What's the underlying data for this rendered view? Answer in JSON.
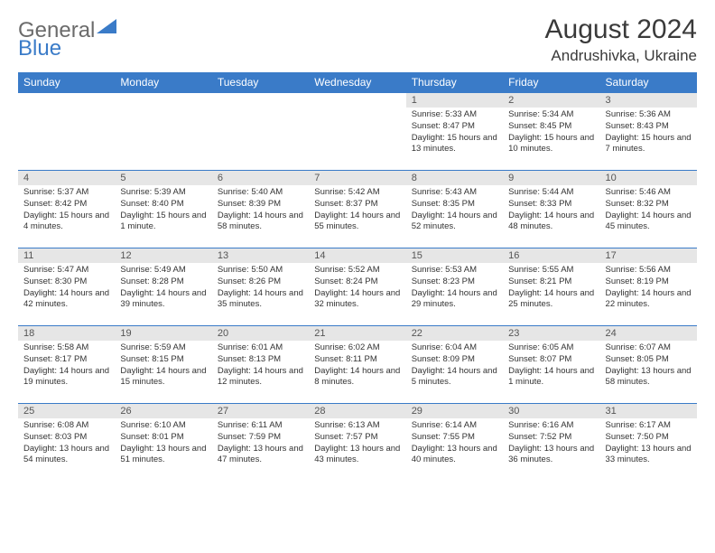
{
  "brand": {
    "text1": "General",
    "text2": "Blue",
    "color1": "#6b6b6b",
    "color2": "#3a7bc8"
  },
  "title": "August 2024",
  "location": "Andrushivka, Ukraine",
  "colors": {
    "header_bg": "#3a7bc8",
    "header_text": "#ffffff",
    "daynum_bg": "#e6e6e6",
    "border": "#3a7bc8",
    "text": "#333333"
  },
  "day_headers": [
    "Sunday",
    "Monday",
    "Tuesday",
    "Wednesday",
    "Thursday",
    "Friday",
    "Saturday"
  ],
  "weeks": [
    [
      {
        "n": "",
        "sr": "",
        "ss": "",
        "dl": ""
      },
      {
        "n": "",
        "sr": "",
        "ss": "",
        "dl": ""
      },
      {
        "n": "",
        "sr": "",
        "ss": "",
        "dl": ""
      },
      {
        "n": "",
        "sr": "",
        "ss": "",
        "dl": ""
      },
      {
        "n": "1",
        "sr": "Sunrise: 5:33 AM",
        "ss": "Sunset: 8:47 PM",
        "dl": "Daylight: 15 hours and 13 minutes."
      },
      {
        "n": "2",
        "sr": "Sunrise: 5:34 AM",
        "ss": "Sunset: 8:45 PM",
        "dl": "Daylight: 15 hours and 10 minutes."
      },
      {
        "n": "3",
        "sr": "Sunrise: 5:36 AM",
        "ss": "Sunset: 8:43 PM",
        "dl": "Daylight: 15 hours and 7 minutes."
      }
    ],
    [
      {
        "n": "4",
        "sr": "Sunrise: 5:37 AM",
        "ss": "Sunset: 8:42 PM",
        "dl": "Daylight: 15 hours and 4 minutes."
      },
      {
        "n": "5",
        "sr": "Sunrise: 5:39 AM",
        "ss": "Sunset: 8:40 PM",
        "dl": "Daylight: 15 hours and 1 minute."
      },
      {
        "n": "6",
        "sr": "Sunrise: 5:40 AM",
        "ss": "Sunset: 8:39 PM",
        "dl": "Daylight: 14 hours and 58 minutes."
      },
      {
        "n": "7",
        "sr": "Sunrise: 5:42 AM",
        "ss": "Sunset: 8:37 PM",
        "dl": "Daylight: 14 hours and 55 minutes."
      },
      {
        "n": "8",
        "sr": "Sunrise: 5:43 AM",
        "ss": "Sunset: 8:35 PM",
        "dl": "Daylight: 14 hours and 52 minutes."
      },
      {
        "n": "9",
        "sr": "Sunrise: 5:44 AM",
        "ss": "Sunset: 8:33 PM",
        "dl": "Daylight: 14 hours and 48 minutes."
      },
      {
        "n": "10",
        "sr": "Sunrise: 5:46 AM",
        "ss": "Sunset: 8:32 PM",
        "dl": "Daylight: 14 hours and 45 minutes."
      }
    ],
    [
      {
        "n": "11",
        "sr": "Sunrise: 5:47 AM",
        "ss": "Sunset: 8:30 PM",
        "dl": "Daylight: 14 hours and 42 minutes."
      },
      {
        "n": "12",
        "sr": "Sunrise: 5:49 AM",
        "ss": "Sunset: 8:28 PM",
        "dl": "Daylight: 14 hours and 39 minutes."
      },
      {
        "n": "13",
        "sr": "Sunrise: 5:50 AM",
        "ss": "Sunset: 8:26 PM",
        "dl": "Daylight: 14 hours and 35 minutes."
      },
      {
        "n": "14",
        "sr": "Sunrise: 5:52 AM",
        "ss": "Sunset: 8:24 PM",
        "dl": "Daylight: 14 hours and 32 minutes."
      },
      {
        "n": "15",
        "sr": "Sunrise: 5:53 AM",
        "ss": "Sunset: 8:23 PM",
        "dl": "Daylight: 14 hours and 29 minutes."
      },
      {
        "n": "16",
        "sr": "Sunrise: 5:55 AM",
        "ss": "Sunset: 8:21 PM",
        "dl": "Daylight: 14 hours and 25 minutes."
      },
      {
        "n": "17",
        "sr": "Sunrise: 5:56 AM",
        "ss": "Sunset: 8:19 PM",
        "dl": "Daylight: 14 hours and 22 minutes."
      }
    ],
    [
      {
        "n": "18",
        "sr": "Sunrise: 5:58 AM",
        "ss": "Sunset: 8:17 PM",
        "dl": "Daylight: 14 hours and 19 minutes."
      },
      {
        "n": "19",
        "sr": "Sunrise: 5:59 AM",
        "ss": "Sunset: 8:15 PM",
        "dl": "Daylight: 14 hours and 15 minutes."
      },
      {
        "n": "20",
        "sr": "Sunrise: 6:01 AM",
        "ss": "Sunset: 8:13 PM",
        "dl": "Daylight: 14 hours and 12 minutes."
      },
      {
        "n": "21",
        "sr": "Sunrise: 6:02 AM",
        "ss": "Sunset: 8:11 PM",
        "dl": "Daylight: 14 hours and 8 minutes."
      },
      {
        "n": "22",
        "sr": "Sunrise: 6:04 AM",
        "ss": "Sunset: 8:09 PM",
        "dl": "Daylight: 14 hours and 5 minutes."
      },
      {
        "n": "23",
        "sr": "Sunrise: 6:05 AM",
        "ss": "Sunset: 8:07 PM",
        "dl": "Daylight: 14 hours and 1 minute."
      },
      {
        "n": "24",
        "sr": "Sunrise: 6:07 AM",
        "ss": "Sunset: 8:05 PM",
        "dl": "Daylight: 13 hours and 58 minutes."
      }
    ],
    [
      {
        "n": "25",
        "sr": "Sunrise: 6:08 AM",
        "ss": "Sunset: 8:03 PM",
        "dl": "Daylight: 13 hours and 54 minutes."
      },
      {
        "n": "26",
        "sr": "Sunrise: 6:10 AM",
        "ss": "Sunset: 8:01 PM",
        "dl": "Daylight: 13 hours and 51 minutes."
      },
      {
        "n": "27",
        "sr": "Sunrise: 6:11 AM",
        "ss": "Sunset: 7:59 PM",
        "dl": "Daylight: 13 hours and 47 minutes."
      },
      {
        "n": "28",
        "sr": "Sunrise: 6:13 AM",
        "ss": "Sunset: 7:57 PM",
        "dl": "Daylight: 13 hours and 43 minutes."
      },
      {
        "n": "29",
        "sr": "Sunrise: 6:14 AM",
        "ss": "Sunset: 7:55 PM",
        "dl": "Daylight: 13 hours and 40 minutes."
      },
      {
        "n": "30",
        "sr": "Sunrise: 6:16 AM",
        "ss": "Sunset: 7:52 PM",
        "dl": "Daylight: 13 hours and 36 minutes."
      },
      {
        "n": "31",
        "sr": "Sunrise: 6:17 AM",
        "ss": "Sunset: 7:50 PM",
        "dl": "Daylight: 13 hours and 33 minutes."
      }
    ]
  ]
}
